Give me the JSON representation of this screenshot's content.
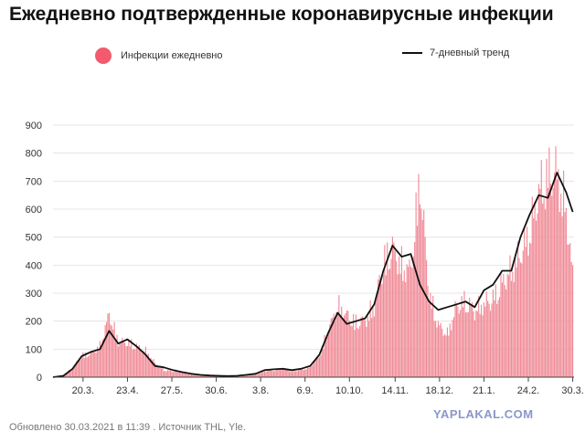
{
  "chart_data": {
    "type": "bar",
    "title": "Ежедневно подтвержденные коронавирусные инфекции",
    "legend": {
      "position": "top",
      "bars_label": "Инфекции ежедневно",
      "line_label": "7-дневный тренд"
    },
    "colors": {
      "bars": "#f08c98",
      "legend_dot": "#f25a6e",
      "trend": "#111111",
      "grid": "#e4e4e4",
      "axis": "#444444"
    },
    "ylim": [
      0,
      900
    ],
    "yticks": [
      0,
      100,
      200,
      300,
      400,
      500,
      600,
      700,
      800,
      900
    ],
    "grid": true,
    "x_range": [
      "2020-02-26",
      "2021-03-31"
    ],
    "xticks": [
      {
        "date": "2020-03-20",
        "label": "20.3."
      },
      {
        "date": "2020-04-23",
        "label": "23.4."
      },
      {
        "date": "2020-05-27",
        "label": "27.5."
      },
      {
        "date": "2020-06-30",
        "label": "30.6."
      },
      {
        "date": "2020-08-03",
        "label": "3.8."
      },
      {
        "date": "2020-09-06",
        "label": "6.9."
      },
      {
        "date": "2020-10-10",
        "label": "10.10."
      },
      {
        "date": "2020-11-14",
        "label": "14.11."
      },
      {
        "date": "2020-12-18",
        "label": "18.12."
      },
      {
        "date": "2021-01-21",
        "label": "21.1."
      },
      {
        "date": "2021-02-24",
        "label": "24.2."
      },
      {
        "date": "2021-03-30",
        "label": "30.3."
      }
    ],
    "series": [
      {
        "name": "Инфекции ежедневно",
        "kind": "bar",
        "x": [
          "2020-02-26",
          "2020-03-05",
          "2020-03-12",
          "2020-03-19",
          "2020-03-26",
          "2020-04-02",
          "2020-04-09",
          "2020-04-16",
          "2020-04-23",
          "2020-04-30",
          "2020-05-07",
          "2020-05-14",
          "2020-05-21",
          "2020-05-28",
          "2020-06-04",
          "2020-06-11",
          "2020-06-18",
          "2020-06-25",
          "2020-07-02",
          "2020-07-09",
          "2020-07-16",
          "2020-07-23",
          "2020-07-30",
          "2020-08-06",
          "2020-08-13",
          "2020-08-20",
          "2020-08-27",
          "2020-09-03",
          "2020-09-10",
          "2020-09-17",
          "2020-09-24",
          "2020-10-01",
          "2020-10-08",
          "2020-10-15",
          "2020-10-22",
          "2020-10-29",
          "2020-11-05",
          "2020-11-12",
          "2020-11-19",
          "2020-11-26",
          "2020-12-03",
          "2020-12-10",
          "2020-12-17",
          "2020-12-24",
          "2020-12-31",
          "2021-01-07",
          "2021-01-14",
          "2021-01-21",
          "2021-01-28",
          "2021-02-04",
          "2021-02-11",
          "2021-02-18",
          "2021-02-25",
          "2021-03-04",
          "2021-03-11",
          "2021-03-18",
          "2021-03-25",
          "2021-03-30"
        ],
        "values": [
          2,
          5,
          40,
          90,
          100,
          130,
          265,
          150,
          145,
          130,
          110,
          60,
          30,
          25,
          22,
          12,
          8,
          10,
          5,
          4,
          6,
          10,
          14,
          25,
          30,
          35,
          25,
          30,
          45,
          90,
          200,
          300,
          260,
          230,
          240,
          300,
          480,
          540,
          470,
          450,
          840,
          350,
          220,
          180,
          300,
          320,
          280,
          310,
          330,
          400,
          450,
          520,
          610,
          780,
          850,
          860,
          700,
          420
        ]
      },
      {
        "name": "7-дневный тренд",
        "kind": "line",
        "x": [
          "2020-02-26",
          "2020-03-05",
          "2020-03-12",
          "2020-03-19",
          "2020-03-26",
          "2020-04-02",
          "2020-04-09",
          "2020-04-16",
          "2020-04-23",
          "2020-04-30",
          "2020-05-07",
          "2020-05-14",
          "2020-05-21",
          "2020-05-28",
          "2020-06-04",
          "2020-06-11",
          "2020-06-18",
          "2020-06-25",
          "2020-07-02",
          "2020-07-09",
          "2020-07-16",
          "2020-07-23",
          "2020-07-30",
          "2020-08-06",
          "2020-08-13",
          "2020-08-20",
          "2020-08-27",
          "2020-09-03",
          "2020-09-10",
          "2020-09-17",
          "2020-09-24",
          "2020-10-01",
          "2020-10-08",
          "2020-10-15",
          "2020-10-22",
          "2020-10-29",
          "2020-11-05",
          "2020-11-12",
          "2020-11-19",
          "2020-11-26",
          "2020-12-03",
          "2020-12-10",
          "2020-12-17",
          "2020-12-24",
          "2020-12-31",
          "2021-01-07",
          "2021-01-14",
          "2021-01-21",
          "2021-01-28",
          "2021-02-04",
          "2021-02-11",
          "2021-02-18",
          "2021-02-25",
          "2021-03-04",
          "2021-03-11",
          "2021-03-18",
          "2021-03-25",
          "2021-03-30"
        ],
        "values": [
          0,
          5,
          30,
          75,
          90,
          100,
          165,
          120,
          135,
          110,
          80,
          40,
          35,
          25,
          18,
          12,
          8,
          6,
          5,
          4,
          5,
          8,
          12,
          25,
          28,
          30,
          25,
          30,
          40,
          80,
          160,
          230,
          190,
          200,
          210,
          260,
          380,
          470,
          430,
          440,
          330,
          270,
          240,
          250,
          260,
          270,
          250,
          310,
          330,
          380,
          380,
          500,
          580,
          650,
          640,
          730,
          660,
          590
        ]
      }
    ]
  },
  "footer": {
    "source": "Обновлено 30.03.2021 в 11:39 . Источник THL, Yle."
  },
  "watermark": "YAPLAKAL.COM"
}
